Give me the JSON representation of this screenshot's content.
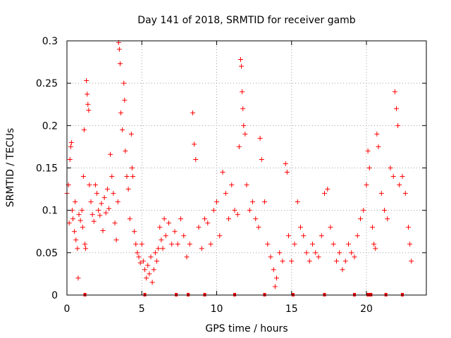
{
  "chart_data": {
    "type": "scatter",
    "title": "Day 141 of 2018, SRMTID for receiver gamb",
    "xlabel": "GPS time / hours",
    "ylabel": "SRMTID / TECUs",
    "xlim": [
      0,
      24
    ],
    "ylim": [
      0,
      0.3
    ],
    "x_ticks": [
      0,
      5,
      10,
      15,
      20
    ],
    "x_tick_labels": [
      "0",
      "5",
      "10",
      "15",
      "20"
    ],
    "y_ticks": [
      0,
      0.05,
      0.1,
      0.15,
      0.2,
      0.25,
      0.3
    ],
    "y_tick_labels": [
      "0",
      "0.05",
      "0.1",
      "0.15",
      "0.2",
      "0.25",
      "0.3"
    ],
    "grid": true,
    "marker": "plus",
    "color": "#ff0000",
    "series": [
      {
        "name": "SRMTID",
        "points": [
          [
            0.0,
            0.12
          ],
          [
            0.1,
            0.13
          ],
          [
            0.15,
            0.085
          ],
          [
            0.2,
            0.16
          ],
          [
            0.25,
            0.175
          ],
          [
            0.3,
            0.18
          ],
          [
            0.35,
            0.1
          ],
          [
            0.4,
            0.09
          ],
          [
            0.5,
            0.075
          ],
          [
            0.55,
            0.11
          ],
          [
            0.6,
            0.065
          ],
          [
            0.7,
            0.055
          ],
          [
            0.75,
            0.02
          ],
          [
            0.8,
            0.095
          ],
          [
            0.9,
            0.088
          ],
          [
            1.0,
            0.1
          ],
          [
            1.05,
            0.08
          ],
          [
            1.1,
            0.14
          ],
          [
            1.15,
            0.195
          ],
          [
            1.2,
            0.06
          ],
          [
            1.25,
            0.055
          ],
          [
            1.3,
            0.253
          ],
          [
            1.35,
            0.237
          ],
          [
            1.4,
            0.225
          ],
          [
            1.45,
            0.218
          ],
          [
            1.5,
            0.13
          ],
          [
            1.6,
            0.11
          ],
          [
            1.7,
            0.095
          ],
          [
            1.8,
            0.087
          ],
          [
            1.9,
            0.13
          ],
          [
            2.0,
            0.12
          ],
          [
            2.1,
            0.1
          ],
          [
            2.2,
            0.094
          ],
          [
            2.3,
            0.108
          ],
          [
            2.4,
            0.076
          ],
          [
            2.5,
            0.115
          ],
          [
            2.6,
            0.097
          ],
          [
            2.7,
            0.125
          ],
          [
            2.8,
            0.102
          ],
          [
            2.9,
            0.166
          ],
          [
            3.0,
            0.14
          ],
          [
            3.1,
            0.12
          ],
          [
            3.2,
            0.085
          ],
          [
            3.3,
            0.065
          ],
          [
            3.4,
            0.11
          ],
          [
            3.45,
            0.298
          ],
          [
            3.5,
            0.29
          ],
          [
            3.55,
            0.273
          ],
          [
            3.6,
            0.215
          ],
          [
            3.7,
            0.195
          ],
          [
            3.8,
            0.25
          ],
          [
            3.85,
            0.23
          ],
          [
            3.9,
            0.17
          ],
          [
            4.0,
            0.14
          ],
          [
            4.1,
            0.125
          ],
          [
            4.2,
            0.09
          ],
          [
            4.3,
            0.19
          ],
          [
            4.35,
            0.15
          ],
          [
            4.4,
            0.14
          ],
          [
            4.5,
            0.075
          ],
          [
            4.6,
            0.06
          ],
          [
            4.7,
            0.05
          ],
          [
            4.8,
            0.045
          ],
          [
            4.9,
            0.038
          ],
          [
            5.0,
            0.06
          ],
          [
            5.1,
            0.04
          ],
          [
            5.2,
            0.03
          ],
          [
            5.3,
            0.02
          ],
          [
            5.4,
            0.035
          ],
          [
            5.5,
            0.025
          ],
          [
            5.6,
            0.045
          ],
          [
            5.7,
            0.015
          ],
          [
            5.8,
            0.03
          ],
          [
            5.9,
            0.05
          ],
          [
            6.0,
            0.04
          ],
          [
            6.1,
            0.055
          ],
          [
            6.2,
            0.08
          ],
          [
            6.3,
            0.065
          ],
          [
            6.4,
            0.055
          ],
          [
            6.5,
            0.09
          ],
          [
            6.6,
            0.07
          ],
          [
            6.8,
            0.085
          ],
          [
            7.0,
            0.06
          ],
          [
            7.2,
            0.075
          ],
          [
            7.4,
            0.06
          ],
          [
            7.6,
            0.09
          ],
          [
            7.8,
            0.07
          ],
          [
            8.0,
            0.045
          ],
          [
            8.2,
            0.06
          ],
          [
            8.4,
            0.215
          ],
          [
            8.5,
            0.178
          ],
          [
            8.6,
            0.16
          ],
          [
            8.8,
            0.08
          ],
          [
            9.0,
            0.055
          ],
          [
            9.2,
            0.09
          ],
          [
            9.4,
            0.085
          ],
          [
            9.6,
            0.06
          ],
          [
            9.8,
            0.1
          ],
          [
            10.0,
            0.11
          ],
          [
            10.2,
            0.07
          ],
          [
            10.4,
            0.145
          ],
          [
            10.6,
            0.12
          ],
          [
            10.8,
            0.09
          ],
          [
            11.0,
            0.13
          ],
          [
            11.2,
            0.1
          ],
          [
            11.4,
            0.095
          ],
          [
            11.5,
            0.175
          ],
          [
            11.6,
            0.278
          ],
          [
            11.65,
            0.27
          ],
          [
            11.7,
            0.24
          ],
          [
            11.75,
            0.22
          ],
          [
            11.8,
            0.2
          ],
          [
            11.9,
            0.19
          ],
          [
            12.0,
            0.13
          ],
          [
            12.2,
            0.1
          ],
          [
            12.4,
            0.11
          ],
          [
            12.6,
            0.09
          ],
          [
            12.8,
            0.08
          ],
          [
            12.9,
            0.185
          ],
          [
            13.0,
            0.16
          ],
          [
            13.2,
            0.11
          ],
          [
            13.4,
            0.06
          ],
          [
            13.6,
            0.045
          ],
          [
            13.8,
            0.03
          ],
          [
            13.9,
            0.01
          ],
          [
            14.0,
            0.02
          ],
          [
            14.2,
            0.05
          ],
          [
            14.4,
            0.04
          ],
          [
            14.6,
            0.155
          ],
          [
            14.7,
            0.145
          ],
          [
            14.8,
            0.07
          ],
          [
            15.0,
            0.04
          ],
          [
            15.2,
            0.06
          ],
          [
            15.4,
            0.11
          ],
          [
            15.6,
            0.08
          ],
          [
            15.8,
            0.07
          ],
          [
            16.0,
            0.05
          ],
          [
            16.2,
            0.04
          ],
          [
            16.4,
            0.06
          ],
          [
            16.6,
            0.05
          ],
          [
            16.8,
            0.045
          ],
          [
            17.0,
            0.07
          ],
          [
            17.2,
            0.12
          ],
          [
            17.4,
            0.125
          ],
          [
            17.6,
            0.08
          ],
          [
            17.8,
            0.06
          ],
          [
            18.0,
            0.04
          ],
          [
            18.2,
            0.05
          ],
          [
            18.4,
            0.03
          ],
          [
            18.6,
            0.04
          ],
          [
            18.8,
            0.06
          ],
          [
            19.0,
            0.05
          ],
          [
            19.2,
            0.045
          ],
          [
            19.4,
            0.07
          ],
          [
            19.6,
            0.09
          ],
          [
            19.8,
            0.1
          ],
          [
            20.0,
            0.13
          ],
          [
            20.1,
            0.17
          ],
          [
            20.2,
            0.15
          ],
          [
            20.4,
            0.08
          ],
          [
            20.5,
            0.06
          ],
          [
            20.6,
            0.055
          ],
          [
            20.7,
            0.19
          ],
          [
            20.8,
            0.175
          ],
          [
            21.0,
            0.12
          ],
          [
            21.2,
            0.1
          ],
          [
            21.4,
            0.09
          ],
          [
            21.6,
            0.15
          ],
          [
            21.8,
            0.14
          ],
          [
            21.9,
            0.24
          ],
          [
            22.0,
            0.22
          ],
          [
            22.1,
            0.2
          ],
          [
            22.2,
            0.13
          ],
          [
            22.4,
            0.14
          ],
          [
            22.6,
            0.12
          ],
          [
            22.8,
            0.08
          ],
          [
            22.9,
            0.06
          ],
          [
            23.0,
            0.04
          ]
        ]
      }
    ],
    "rug_x": [
      1.2,
      5.2,
      7.3,
      8.1,
      9.2,
      11.2,
      13.2,
      15.1,
      17.2,
      19.2,
      20.1,
      20.2,
      20.3,
      21.3,
      22.4
    ]
  }
}
